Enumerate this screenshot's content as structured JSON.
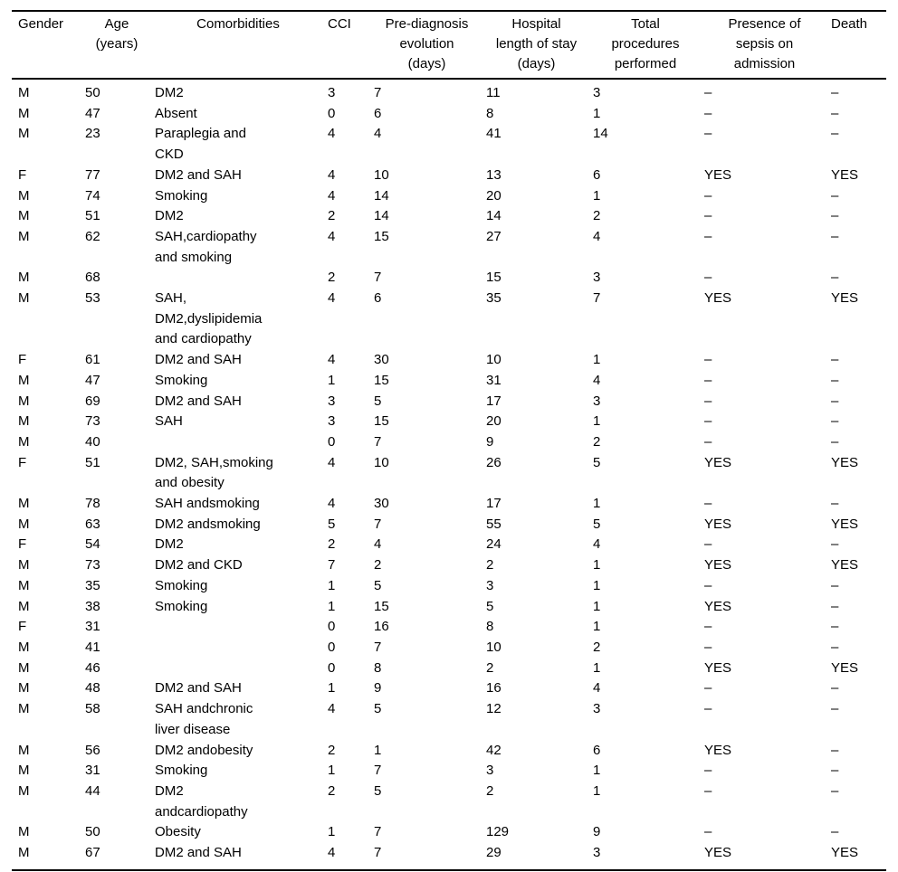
{
  "page": {
    "background_color": "#ffffff",
    "text_color": "#000000",
    "rule_color": "#000000"
  },
  "table": {
    "missing_value_symbol": "–",
    "columns": [
      {
        "label": "Gender"
      },
      {
        "label": "Age\n(years)"
      },
      {
        "label": "Comorbidities"
      },
      {
        "label": "CCI"
      },
      {
        "label": "Pre-diagnosis\nevolution\n(days)"
      },
      {
        "label": "Hospital\nlength of stay\n(days)"
      },
      {
        "label": "Total\nprocedures\nperformed"
      },
      {
        "label": "Presence of\nsepsis on\nadmission"
      },
      {
        "label": "Death"
      }
    ],
    "rows": [
      [
        "M",
        "50",
        "DM2",
        "3",
        "7",
        "11",
        "3",
        "–",
        "–"
      ],
      [
        "M",
        "47",
        "Absent",
        "0",
        "6",
        "8",
        "1",
        "–",
        "–"
      ],
      [
        "M",
        "23",
        "Paraplegia and\nCKD",
        "4",
        "4",
        "41",
        "14",
        "–",
        "–"
      ],
      [
        "F",
        "77",
        "DM2 and SAH",
        "4",
        "10",
        "13",
        "6",
        "YES",
        "YES"
      ],
      [
        "M",
        "74",
        "Smoking",
        "4",
        "14",
        "20",
        "1",
        "–",
        "–"
      ],
      [
        "M",
        "51",
        "DM2",
        "2",
        "14",
        "14",
        "2",
        "–",
        "–"
      ],
      [
        "M",
        "62",
        "SAH,cardiopathy\nand smoking",
        "4",
        "15",
        "27",
        "4",
        "–",
        "–"
      ],
      [
        "M",
        "68",
        "",
        "2",
        "7",
        "15",
        "3",
        "–",
        "–"
      ],
      [
        "M",
        "53",
        "SAH,\nDM2,dyslipidemia\nand cardiopathy",
        "4",
        "6",
        "35",
        "7",
        "YES",
        "YES"
      ],
      [
        "F",
        "61",
        "DM2 and SAH",
        "4",
        "30",
        "10",
        "1",
        "–",
        "–"
      ],
      [
        "M",
        "47",
        "Smoking",
        "1",
        "15",
        "31",
        "4",
        "–",
        "–"
      ],
      [
        "M",
        "69",
        "DM2 and SAH",
        "3",
        "5",
        "17",
        "3",
        "–",
        "–"
      ],
      [
        "M",
        "73",
        "SAH",
        "3",
        "15",
        "20",
        "1",
        "–",
        "–"
      ],
      [
        "M",
        "40",
        "",
        "0",
        "7",
        "9",
        "2",
        "–",
        "–"
      ],
      [
        "F",
        "51",
        "DM2, SAH,smoking\nand obesity",
        "4",
        "10",
        "26",
        "5",
        "YES",
        "YES"
      ],
      [
        "M",
        "78",
        "SAH andsmoking",
        "4",
        "30",
        "17",
        "1",
        "–",
        "–"
      ],
      [
        "M",
        "63",
        "DM2 andsmoking",
        "5",
        "7",
        "55",
        "5",
        "YES",
        "YES"
      ],
      [
        "F",
        "54",
        "DM2",
        "2",
        "4",
        "24",
        "4",
        "–",
        "–"
      ],
      [
        "M",
        "73",
        "DM2 and CKD",
        "7",
        "2",
        "2",
        "1",
        "YES",
        "YES"
      ],
      [
        "M",
        "35",
        "Smoking",
        "1",
        "5",
        "3",
        "1",
        "–",
        "–"
      ],
      [
        "M",
        "38",
        "Smoking",
        "1",
        "15",
        "5",
        "1",
        "YES",
        "–"
      ],
      [
        "F",
        "31",
        "",
        "0",
        "16",
        "8",
        "1",
        "–",
        "–"
      ],
      [
        "M",
        "41",
        "",
        "0",
        "7",
        "10",
        "2",
        "–",
        "–"
      ],
      [
        "M",
        "46",
        "",
        "0",
        "8",
        "2",
        "1",
        "YES",
        "YES"
      ],
      [
        "M",
        "48",
        "DM2 and SAH",
        "1",
        "9",
        "16",
        "4",
        "–",
        "–"
      ],
      [
        "M",
        "58",
        "SAH andchronic\nliver disease",
        "4",
        "5",
        "12",
        "3",
        "–",
        "–"
      ],
      [
        "M",
        "56",
        "DM2 andobesity",
        "2",
        "1",
        "42",
        "6",
        "YES",
        "–"
      ],
      [
        "M",
        "31",
        "Smoking",
        "1",
        "7",
        "3",
        "1",
        "–",
        "–"
      ],
      [
        "M",
        "44",
        "DM2\nandcardiopathy",
        "2",
        "5",
        "2",
        "1",
        "–",
        "–"
      ],
      [
        "M",
        "50",
        "Obesity",
        "1",
        "7",
        "129",
        "9",
        "–",
        "–"
      ],
      [
        "M",
        "67",
        "DM2 and SAH",
        "4",
        "7",
        "29",
        "3",
        "YES",
        "YES"
      ]
    ]
  }
}
